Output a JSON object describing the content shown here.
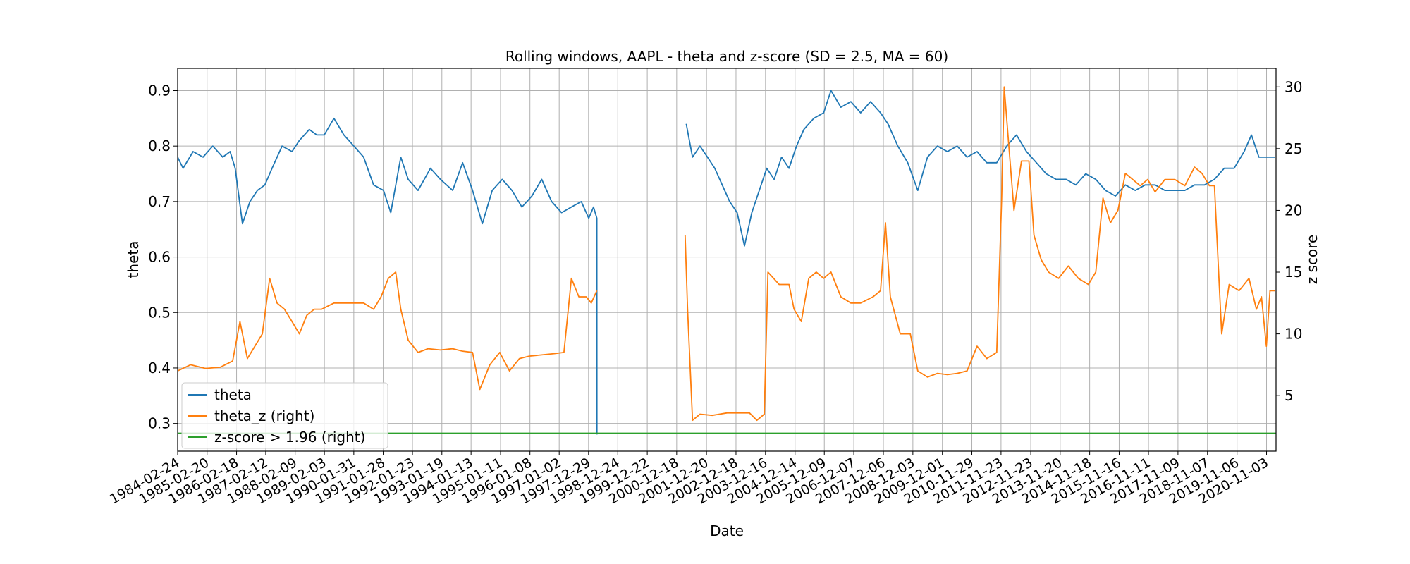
{
  "chart_data": {
    "type": "line",
    "title": "Rolling windows, AAPL - theta and z-score (SD = 2.5, MA = 60)",
    "xlabel": "Date",
    "ylabel": "theta",
    "y2label": "z score",
    "x_range": [
      "1984-02-24",
      "2021-02-28"
    ],
    "ylim": [
      0.25,
      0.94
    ],
    "y2lim": [
      0.5,
      31.5
    ],
    "yticks": [
      "0.3",
      "0.4",
      "0.5",
      "0.6",
      "0.7",
      "0.8",
      "0.9"
    ],
    "y2ticks": [
      "5",
      "10",
      "15",
      "20",
      "25",
      "30"
    ],
    "xticks": [
      "1984-02-24",
      "1985-02-20",
      "1986-02-18",
      "1987-02-12",
      "1988-02-09",
      "1989-02-03",
      "1990-01-31",
      "1991-01-28",
      "1992-01-23",
      "1993-01-19",
      "1994-01-13",
      "1995-01-11",
      "1996-01-08",
      "1997-01-02",
      "1997-12-29",
      "1998-12-24",
      "1999-12-22",
      "2000-12-18",
      "2001-12-20",
      "2002-12-18",
      "2003-12-16",
      "2004-12-14",
      "2005-12-09",
      "2006-12-07",
      "2007-12-06",
      "2008-12-03",
      "2009-12-01",
      "2010-11-29",
      "2011-11-23",
      "2012-11-23",
      "2013-11-20",
      "2014-11-18",
      "2015-11-16",
      "2016-11-11",
      "2017-11-09",
      "2018-11-07",
      "2019-11-06",
      "2020-11-03"
    ],
    "grid": true,
    "legend_position": "lower-left",
    "series": [
      {
        "name": "theta",
        "axis": "left",
        "color": "#1f77b4",
        "segments": [
          [
            [
              "1984-02-24",
              0.78
            ],
            [
              "1984-05-01",
              0.76
            ],
            [
              "1984-09-01",
              0.79
            ],
            [
              "1985-01-01",
              0.78
            ],
            [
              "1985-05-01",
              0.8
            ],
            [
              "1985-09-01",
              0.78
            ],
            [
              "1985-12-01",
              0.79
            ],
            [
              "1986-02-01",
              0.76
            ],
            [
              "1986-05-01",
              0.66
            ],
            [
              "1986-08-01",
              0.7
            ],
            [
              "1986-11-01",
              0.72
            ],
            [
              "1987-02-01",
              0.73
            ],
            [
              "1987-05-01",
              0.76
            ],
            [
              "1987-09-01",
              0.8
            ],
            [
              "1988-01-01",
              0.79
            ],
            [
              "1988-04-01",
              0.81
            ],
            [
              "1988-08-01",
              0.83
            ],
            [
              "1988-11-01",
              0.82
            ],
            [
              "1989-02-01",
              0.82
            ],
            [
              "1989-06-01",
              0.85
            ],
            [
              "1989-10-01",
              0.82
            ],
            [
              "1990-02-01",
              0.8
            ],
            [
              "1990-06-01",
              0.78
            ],
            [
              "1990-10-01",
              0.73
            ],
            [
              "1991-02-01",
              0.72
            ],
            [
              "1991-05-01",
              0.68
            ],
            [
              "1991-09-01",
              0.78
            ],
            [
              "1991-12-01",
              0.74
            ],
            [
              "1992-04-01",
              0.72
            ],
            [
              "1992-09-01",
              0.76
            ],
            [
              "1993-01-01",
              0.74
            ],
            [
              "1993-06-01",
              0.72
            ],
            [
              "1993-10-01",
              0.77
            ],
            [
              "1994-02-01",
              0.72
            ],
            [
              "1994-06-01",
              0.66
            ],
            [
              "1994-10-01",
              0.72
            ],
            [
              "1995-02-01",
              0.74
            ],
            [
              "1995-06-01",
              0.72
            ],
            [
              "1995-10-01",
              0.69
            ],
            [
              "1996-02-01",
              0.71
            ],
            [
              "1996-06-01",
              0.74
            ],
            [
              "1996-10-01",
              0.7
            ],
            [
              "1997-02-01",
              0.68
            ],
            [
              "1997-06-01",
              0.69
            ],
            [
              "1997-10-01",
              0.7
            ],
            [
              "1998-01-01",
              0.67
            ],
            [
              "1998-03-01",
              0.69
            ],
            [
              "1998-04-10",
              0.67
            ],
            [
              "1998-04-11",
              0.28
            ]
          ],
          [
            [
              "2001-04-15",
              0.84
            ],
            [
              "2001-07-01",
              0.78
            ],
            [
              "2001-10-01",
              0.8
            ],
            [
              "2002-01-01",
              0.78
            ],
            [
              "2002-04-01",
              0.76
            ],
            [
              "2002-07-01",
              0.73
            ],
            [
              "2002-10-01",
              0.7
            ],
            [
              "2003-01-01",
              0.68
            ],
            [
              "2003-04-01",
              0.62
            ],
            [
              "2003-07-01",
              0.68
            ],
            [
              "2003-10-01",
              0.72
            ],
            [
              "2004-01-01",
              0.76
            ],
            [
              "2004-04-01",
              0.74
            ],
            [
              "2004-07-01",
              0.78
            ],
            [
              "2004-10-01",
              0.76
            ],
            [
              "2005-01-01",
              0.8
            ],
            [
              "2005-04-01",
              0.83
            ],
            [
              "2005-08-01",
              0.85
            ],
            [
              "2005-12-01",
              0.86
            ],
            [
              "2006-03-01",
              0.9
            ],
            [
              "2006-07-01",
              0.87
            ],
            [
              "2006-11-01",
              0.88
            ],
            [
              "2007-03-01",
              0.86
            ],
            [
              "2007-07-01",
              0.88
            ],
            [
              "2007-11-01",
              0.86
            ],
            [
              "2008-02-01",
              0.84
            ],
            [
              "2008-06-01",
              0.8
            ],
            [
              "2008-10-01",
              0.77
            ],
            [
              "2009-02-01",
              0.72
            ],
            [
              "2009-06-01",
              0.78
            ],
            [
              "2009-10-01",
              0.8
            ],
            [
              "2010-02-01",
              0.79
            ],
            [
              "2010-06-01",
              0.8
            ],
            [
              "2010-10-01",
              0.78
            ],
            [
              "2011-02-01",
              0.79
            ],
            [
              "2011-06-01",
              0.77
            ],
            [
              "2011-10-01",
              0.77
            ],
            [
              "2012-02-01",
              0.8
            ],
            [
              "2012-06-01",
              0.82
            ],
            [
              "2012-10-01",
              0.79
            ],
            [
              "2013-02-01",
              0.77
            ],
            [
              "2013-06-01",
              0.75
            ],
            [
              "2013-10-01",
              0.74
            ],
            [
              "2014-02-01",
              0.74
            ],
            [
              "2014-06-01",
              0.73
            ],
            [
              "2014-10-01",
              0.75
            ],
            [
              "2015-02-01",
              0.74
            ],
            [
              "2015-06-01",
              0.72
            ],
            [
              "2015-10-01",
              0.71
            ],
            [
              "2016-02-01",
              0.73
            ],
            [
              "2016-06-01",
              0.72
            ],
            [
              "2016-10-01",
              0.73
            ],
            [
              "2017-02-01",
              0.73
            ],
            [
              "2017-06-01",
              0.72
            ],
            [
              "2017-10-01",
              0.72
            ],
            [
              "2018-02-01",
              0.72
            ],
            [
              "2018-06-01",
              0.73
            ],
            [
              "2018-10-01",
              0.73
            ],
            [
              "2019-02-01",
              0.74
            ],
            [
              "2019-06-01",
              0.76
            ],
            [
              "2019-10-01",
              0.76
            ],
            [
              "2020-02-01",
              0.79
            ],
            [
              "2020-05-01",
              0.82
            ],
            [
              "2020-08-01",
              0.78
            ],
            [
              "2020-11-01",
              0.78
            ],
            [
              "2021-02-15",
              0.78
            ]
          ]
        ]
      },
      {
        "name": "theta_z (right)",
        "axis": "right",
        "color": "#ff7f0e",
        "segments": [
          [
            [
              "1984-02-24",
              7.0
            ],
            [
              "1984-08-01",
              7.5
            ],
            [
              "1985-02-01",
              7.2
            ],
            [
              "1985-08-01",
              7.3
            ],
            [
              "1986-01-01",
              7.8
            ],
            [
              "1986-04-01",
              11.0
            ],
            [
              "1986-07-01",
              8.0
            ],
            [
              "1986-10-01",
              9.0
            ],
            [
              "1987-01-01",
              10.0
            ],
            [
              "1987-04-01",
              14.5
            ],
            [
              "1987-07-01",
              12.5
            ],
            [
              "1987-10-01",
              12.0
            ],
            [
              "1988-01-01",
              11.0
            ],
            [
              "1988-04-01",
              10.0
            ],
            [
              "1988-07-01",
              11.5
            ],
            [
              "1988-10-01",
              12.0
            ],
            [
              "1989-01-01",
              12.0
            ],
            [
              "1989-06-01",
              12.5
            ],
            [
              "1989-12-01",
              12.5
            ],
            [
              "1990-06-01",
              12.5
            ],
            [
              "1990-10-01",
              12.0
            ],
            [
              "1991-01-01",
              13.0
            ],
            [
              "1991-04-01",
              14.5
            ],
            [
              "1991-07-01",
              15.0
            ],
            [
              "1991-09-01",
              12.0
            ],
            [
              "1991-12-01",
              9.5
            ],
            [
              "1992-04-01",
              8.5
            ],
            [
              "1992-08-01",
              8.8
            ],
            [
              "1993-01-01",
              8.7
            ],
            [
              "1993-06-01",
              8.8
            ],
            [
              "1993-10-01",
              8.6
            ],
            [
              "1994-02-01",
              8.5
            ],
            [
              "1994-05-01",
              5.5
            ],
            [
              "1994-09-01",
              7.5
            ],
            [
              "1995-01-01",
              8.5
            ],
            [
              "1995-05-01",
              7.0
            ],
            [
              "1995-09-01",
              8.0
            ],
            [
              "1996-01-01",
              8.2
            ],
            [
              "1996-06-01",
              8.3
            ],
            [
              "1996-11-01",
              8.4
            ],
            [
              "1997-03-01",
              8.5
            ],
            [
              "1997-06-01",
              14.5
            ],
            [
              "1997-09-01",
              13.0
            ],
            [
              "1997-12-01",
              13.0
            ],
            [
              "1998-02-01",
              12.5
            ],
            [
              "1998-04-10",
              13.5
            ]
          ],
          [
            [
              "2001-04-01",
              18.0
            ],
            [
              "2001-05-01",
              12.0
            ],
            [
              "2001-07-01",
              3.0
            ],
            [
              "2001-10-01",
              3.5
            ],
            [
              "2002-03-01",
              3.4
            ],
            [
              "2002-09-01",
              3.6
            ],
            [
              "2003-03-01",
              3.6
            ],
            [
              "2003-06-01",
              3.6
            ],
            [
              "2003-09-01",
              3.0
            ],
            [
              "2003-12-01",
              3.5
            ],
            [
              "2004-01-15",
              15.0
            ],
            [
              "2004-06-01",
              14.0
            ],
            [
              "2004-10-01",
              14.0
            ],
            [
              "2004-12-01",
              12.0
            ],
            [
              "2005-03-01",
              11.0
            ],
            [
              "2005-06-01",
              14.5
            ],
            [
              "2005-09-01",
              15.0
            ],
            [
              "2005-12-01",
              14.5
            ],
            [
              "2006-03-01",
              15.0
            ],
            [
              "2006-07-01",
              13.0
            ],
            [
              "2006-11-01",
              12.5
            ],
            [
              "2007-03-01",
              12.5
            ],
            [
              "2007-08-01",
              13.0
            ],
            [
              "2007-11-01",
              13.5
            ],
            [
              "2008-01-01",
              19.0
            ],
            [
              "2008-03-01",
              13.0
            ],
            [
              "2008-07-01",
              10.0
            ],
            [
              "2008-11-01",
              10.0
            ],
            [
              "2009-02-01",
              7.0
            ],
            [
              "2009-06-01",
              6.5
            ],
            [
              "2009-10-01",
              6.8
            ],
            [
              "2010-02-01",
              6.7
            ],
            [
              "2010-06-01",
              6.8
            ],
            [
              "2010-10-01",
              7.0
            ],
            [
              "2011-02-01",
              9.0
            ],
            [
              "2011-06-01",
              8.0
            ],
            [
              "2011-10-01",
              8.5
            ],
            [
              "2011-12-01",
              21.0
            ],
            [
              "2012-01-01",
              30.0
            ],
            [
              "2012-03-01",
              25.0
            ],
            [
              "2012-05-01",
              20.0
            ],
            [
              "2012-08-01",
              24.0
            ],
            [
              "2012-11-01",
              24.0
            ],
            [
              "2013-01-01",
              18.0
            ],
            [
              "2013-04-01",
              16.0
            ],
            [
              "2013-07-01",
              15.0
            ],
            [
              "2013-11-01",
              14.5
            ],
            [
              "2014-03-01",
              15.5
            ],
            [
              "2014-07-01",
              14.5
            ],
            [
              "2014-11-01",
              14.0
            ],
            [
              "2015-02-01",
              15.0
            ],
            [
              "2015-05-01",
              21.0
            ],
            [
              "2015-08-01",
              19.0
            ],
            [
              "2015-11-01",
              20.0
            ],
            [
              "2016-02-01",
              23.0
            ],
            [
              "2016-05-01",
              22.5
            ],
            [
              "2016-08-01",
              22.0
            ],
            [
              "2016-11-01",
              22.5
            ],
            [
              "2017-02-01",
              21.5
            ],
            [
              "2017-06-01",
              22.5
            ],
            [
              "2017-10-01",
              22.5
            ],
            [
              "2018-02-01",
              22.0
            ],
            [
              "2018-06-01",
              23.5
            ],
            [
              "2018-09-01",
              23.0
            ],
            [
              "2018-12-01",
              22.0
            ],
            [
              "2019-02-01",
              22.0
            ],
            [
              "2019-04-01",
              14.0
            ],
            [
              "2019-05-01",
              10.0
            ],
            [
              "2019-08-01",
              14.0
            ],
            [
              "2019-12-01",
              13.5
            ],
            [
              "2020-04-01",
              14.5
            ],
            [
              "2020-07-01",
              12.0
            ],
            [
              "2020-09-01",
              13.0
            ],
            [
              "2020-11-01",
              9.0
            ],
            [
              "2020-12-15",
              13.5
            ],
            [
              "2021-02-15",
              13.5
            ]
          ]
        ]
      },
      {
        "name": "z-score > 1.96 (right)",
        "axis": "right",
        "color": "#2ca02c",
        "constant": 1.96
      }
    ]
  }
}
